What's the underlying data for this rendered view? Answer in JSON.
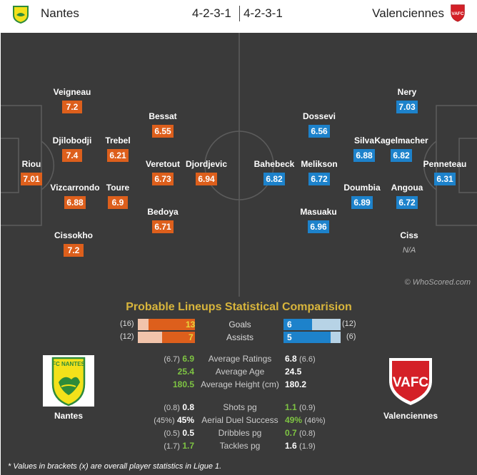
{
  "header": {
    "home_team": "Nantes",
    "away_team": "Valenciennes",
    "home_formation": "4-2-3-1",
    "away_formation": "4-2-3-1",
    "home_logo_icon": "fc-nantes-logo-icon",
    "away_logo_icon": "vafc-logo-icon"
  },
  "colors": {
    "home": "#dd5f1c",
    "away": "#1d82cb",
    "pitch": "#3a3a3a",
    "title": "#d8b53c",
    "best_value": "#7ec443"
  },
  "home_players": [
    {
      "name": "Veigneau",
      "rating": "7.2"
    },
    {
      "name": "Bessat",
      "rating": "6.55"
    },
    {
      "name": "Djilobodji",
      "rating": "7.4"
    },
    {
      "name": "Trebel",
      "rating": "6.21"
    },
    {
      "name": "Riou",
      "rating": "7.01"
    },
    {
      "name": "Veretout",
      "rating": "6.73"
    },
    {
      "name": "Djordjevic",
      "rating": "6.94"
    },
    {
      "name": "Vizcarrondo",
      "rating": "6.88"
    },
    {
      "name": "Toure",
      "rating": "6.9"
    },
    {
      "name": "Bedoya",
      "rating": "6.71"
    },
    {
      "name": "Cissokho",
      "rating": "7.2"
    }
  ],
  "away_players": [
    {
      "name": "Nery",
      "rating": "7.03"
    },
    {
      "name": "Dossevi",
      "rating": "6.56"
    },
    {
      "name": "Silva",
      "rating": "6.88"
    },
    {
      "name": "Kagelmacher",
      "rating": "6.82"
    },
    {
      "name": "Bahebeck",
      "rating": "6.82"
    },
    {
      "name": "Melikson",
      "rating": "6.72"
    },
    {
      "name": "Penneteau",
      "rating": "6.31"
    },
    {
      "name": "Doumbia",
      "rating": "6.89"
    },
    {
      "name": "Angoua",
      "rating": "6.72"
    },
    {
      "name": "Masuaku",
      "rating": "6.96"
    },
    {
      "name": "Ciss",
      "rating": "N/A"
    }
  ],
  "watermark": "© WhoScored.com",
  "comparison": {
    "title": "Probable Lineups Statistical Comparision",
    "bars": [
      {
        "label": "Goals",
        "home": "13",
        "home_overall": "(16)",
        "away": "6",
        "away_overall": "(12)",
        "home_fraction": 0.81,
        "away_fraction": 0.5
      },
      {
        "label": "Assists",
        "home": "7",
        "home_overall": "(12)",
        "away": "5",
        "away_overall": "(6)",
        "home_fraction": 0.58,
        "away_fraction": 0.83
      }
    ],
    "rows": [
      {
        "label": "Average Ratings",
        "home": "6.9",
        "home_overall": "(6.7)",
        "away": "6.8",
        "away_overall": "(6.6)",
        "best": "home"
      },
      {
        "label": "Average Age",
        "home": "25.4",
        "home_overall": "",
        "away": "24.5",
        "away_overall": "",
        "best": "home"
      },
      {
        "label": "Average Height (cm)",
        "home": "180.5",
        "home_overall": "",
        "away": "180.2",
        "away_overall": "",
        "best": "home"
      },
      {
        "label": "Shots pg",
        "home": "0.8",
        "home_overall": "(0.8)",
        "away": "1.1",
        "away_overall": "(0.9)",
        "best": "away"
      },
      {
        "label": "Aerial Duel Success",
        "home": "45%",
        "home_overall": "(45%)",
        "away": "49%",
        "away_overall": "(46%)",
        "best": "away"
      },
      {
        "label": "Dribbles pg",
        "home": "0.5",
        "home_overall": "(0.5)",
        "away": "0.7",
        "away_overall": "(0.8)",
        "best": "away"
      },
      {
        "label": "Tackles pg",
        "home": "1.7",
        "home_overall": "(1.7)",
        "away": "1.6",
        "away_overall": "(1.9)",
        "best": "home"
      }
    ],
    "home_crest": {
      "name": "Nantes",
      "text": "FC NANTES"
    },
    "away_crest": {
      "name": "Valenciennes",
      "text": "VAFC"
    }
  },
  "footnote": "* Values in brackets (x) are overall player statistics in Ligue 1."
}
